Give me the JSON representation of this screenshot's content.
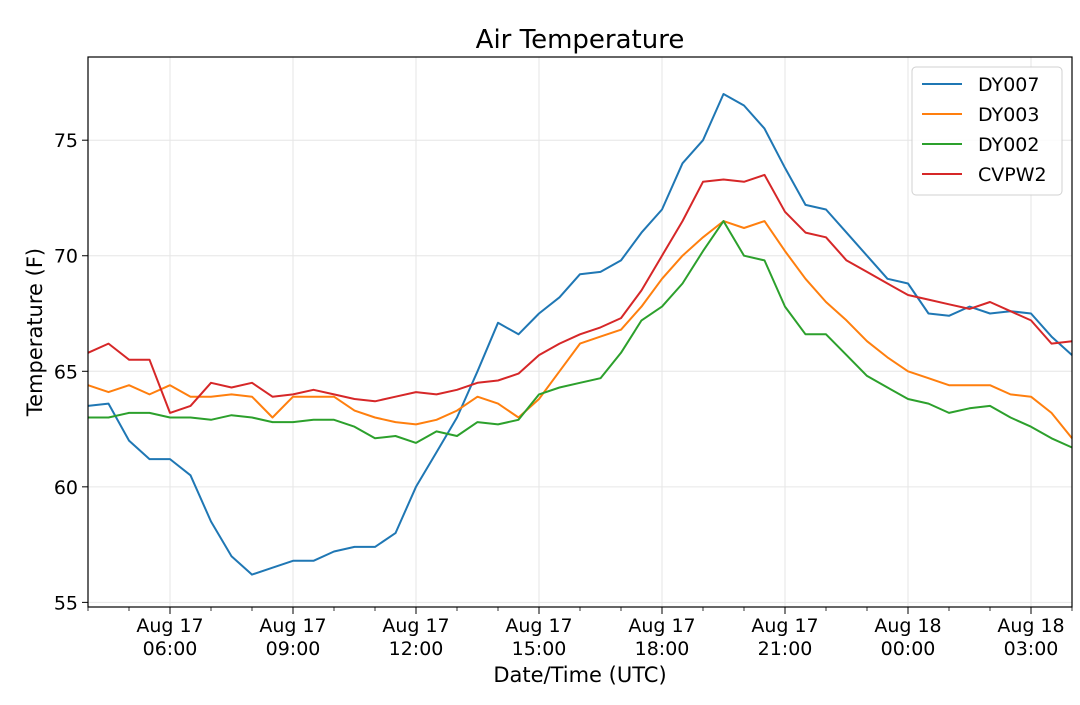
{
  "chart_data": {
    "type": "line",
    "title": "Air Temperature",
    "xlabel": "Date/Time (UTC)",
    "ylabel": "Temperature (F)",
    "xlim": [
      "Aug 17 04:00",
      "Aug 18 04:00"
    ],
    "ylim": [
      54.8,
      78.6
    ],
    "grid": true,
    "legend_position": "top-right",
    "x_ticks": [
      {
        "date": "Aug 17",
        "time": "06:00"
      },
      {
        "date": "Aug 17",
        "time": "09:00"
      },
      {
        "date": "Aug 17",
        "time": "12:00"
      },
      {
        "date": "Aug 17",
        "time": "15:00"
      },
      {
        "date": "Aug 17",
        "time": "18:00"
      },
      {
        "date": "Aug 17",
        "time": "21:00"
      },
      {
        "date": "Aug 18",
        "time": "00:00"
      },
      {
        "date": "Aug 18",
        "time": "03:00"
      }
    ],
    "y_ticks": [
      55,
      60,
      65,
      70,
      75
    ],
    "x": [
      "Aug 17 04:00",
      "Aug 17 04:30",
      "Aug 17 05:00",
      "Aug 17 05:30",
      "Aug 17 06:00",
      "Aug 17 06:30",
      "Aug 17 07:00",
      "Aug 17 07:30",
      "Aug 17 08:00",
      "Aug 17 08:30",
      "Aug 17 09:00",
      "Aug 17 09:30",
      "Aug 17 10:00",
      "Aug 17 10:30",
      "Aug 17 11:00",
      "Aug 17 11:30",
      "Aug 17 12:00",
      "Aug 17 12:30",
      "Aug 17 13:00",
      "Aug 17 13:30",
      "Aug 17 14:00",
      "Aug 17 14:30",
      "Aug 17 15:00",
      "Aug 17 15:30",
      "Aug 17 16:00",
      "Aug 17 16:30",
      "Aug 17 17:00",
      "Aug 17 17:30",
      "Aug 17 18:00",
      "Aug 17 18:30",
      "Aug 17 19:00",
      "Aug 17 19:30",
      "Aug 17 20:00",
      "Aug 17 20:30",
      "Aug 17 21:00",
      "Aug 17 21:30",
      "Aug 17 22:00",
      "Aug 17 22:30",
      "Aug 17 23:00",
      "Aug 17 23:30",
      "Aug 18 00:00",
      "Aug 18 00:30",
      "Aug 18 01:00",
      "Aug 18 01:30",
      "Aug 18 02:00",
      "Aug 18 02:30",
      "Aug 18 03:00",
      "Aug 18 03:30",
      "Aug 18 04:00"
    ],
    "series": [
      {
        "name": "DY007",
        "color": "#1f77b4",
        "values": [
          63.5,
          63.6,
          62.0,
          61.2,
          61.2,
          60.5,
          58.5,
          57.0,
          56.2,
          56.5,
          56.8,
          56.8,
          57.2,
          57.4,
          57.4,
          58.0,
          60.0,
          61.5,
          63.0,
          65.0,
          67.1,
          66.6,
          67.5,
          68.2,
          69.2,
          69.3,
          69.8,
          71.0,
          72.0,
          74.0,
          75.0,
          77.0,
          76.5,
          75.5,
          73.8,
          72.2,
          72.0,
          71.0,
          70.0,
          69.0,
          68.8,
          67.5,
          67.4,
          67.8,
          67.5,
          67.6,
          67.5,
          66.5,
          65.7
        ]
      },
      {
        "name": "DY003",
        "color": "#ff7f0e",
        "values": [
          64.4,
          64.1,
          64.4,
          64.0,
          64.4,
          63.9,
          63.9,
          64.0,
          63.9,
          63.0,
          63.9,
          63.9,
          63.9,
          63.3,
          63.0,
          62.8,
          62.7,
          62.9,
          63.3,
          63.9,
          63.6,
          63.0,
          63.8,
          65.0,
          66.2,
          66.5,
          66.8,
          67.8,
          69.0,
          70.0,
          70.8,
          71.5,
          71.2,
          71.5,
          70.2,
          69.0,
          68.0,
          67.2,
          66.3,
          65.6,
          65.0,
          64.7,
          64.4,
          64.4,
          64.4,
          64.0,
          63.9,
          63.2,
          62.1
        ]
      },
      {
        "name": "DY002",
        "color": "#2ca02c",
        "values": [
          63.0,
          63.0,
          63.2,
          63.2,
          63.0,
          63.0,
          62.9,
          63.1,
          63.0,
          62.8,
          62.8,
          62.9,
          62.9,
          62.6,
          62.1,
          62.2,
          61.9,
          62.4,
          62.2,
          62.8,
          62.7,
          62.9,
          64.0,
          64.3,
          64.5,
          64.7,
          65.8,
          67.2,
          67.8,
          68.8,
          70.2,
          71.5,
          70.0,
          69.8,
          67.8,
          66.6,
          66.6,
          65.7,
          64.8,
          64.3,
          63.8,
          63.6,
          63.2,
          63.4,
          63.5,
          63.0,
          62.6,
          62.1,
          61.7
        ]
      },
      {
        "name": "CVPW2",
        "color": "#d62728",
        "values": [
          65.8,
          66.2,
          65.5,
          65.5,
          63.2,
          63.5,
          64.5,
          64.3,
          64.5,
          63.9,
          64.0,
          64.2,
          64.0,
          63.8,
          63.7,
          63.9,
          64.1,
          64.0,
          64.2,
          64.5,
          64.6,
          64.9,
          65.7,
          66.2,
          66.6,
          66.9,
          67.3,
          68.5,
          70.0,
          71.5,
          73.2,
          73.3,
          73.2,
          73.5,
          71.9,
          71.0,
          70.8,
          69.8,
          69.3,
          68.8,
          68.3,
          68.1,
          67.9,
          67.7,
          68.0,
          67.6,
          67.2,
          66.2,
          66.3
        ]
      }
    ]
  }
}
